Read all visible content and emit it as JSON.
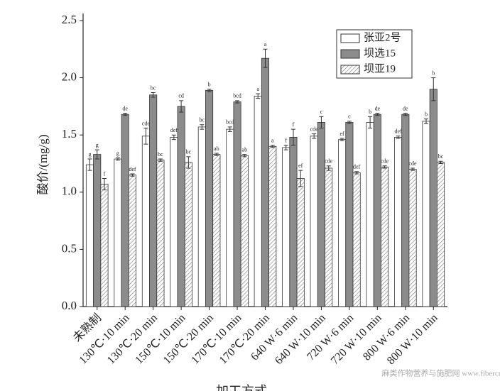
{
  "chart_data": {
    "type": "bar",
    "y_label": "酸价/(mg/g)",
    "x_label": "加工方式",
    "watermark": "麻类作物营养与施肥网 www.fibercrops.com",
    "categories": [
      "未熟制",
      "130℃·10 min",
      "130℃·20 min",
      "150℃·10 min",
      "150℃·20 min",
      "170℃·10 min",
      "170℃·20 min",
      "640 W·6 min",
      "640 W·10 min",
      "720 W·6 min",
      "720 W·10 min",
      "800 W·6 min",
      "800 W·10 min"
    ],
    "series": [
      {
        "name": "张亚2号",
        "color": "#ffffff",
        "hatch": false,
        "values": [
          1.24,
          1.29,
          1.49,
          1.48,
          1.57,
          1.55,
          1.84,
          1.39,
          1.49,
          1.46,
          1.61,
          1.48,
          1.62
        ],
        "errors": [
          0.05,
          0.01,
          0.07,
          0.02,
          0.02,
          0.02,
          0.02,
          0.02,
          0.02,
          0.01,
          0.05,
          0.01,
          0.02
        ],
        "letters": [
          "g",
          "g",
          "cde",
          "def",
          "bc",
          "bcd",
          "a",
          "f",
          "cde",
          "ef",
          "b",
          "def",
          "b"
        ]
      },
      {
        "name": "坝选15",
        "color": "#8c8c8c",
        "hatch": false,
        "values": [
          1.33,
          1.68,
          1.85,
          1.75,
          1.89,
          1.79,
          2.17,
          1.48,
          1.61,
          1.61,
          1.68,
          1.68,
          1.9
        ],
        "errors": [
          0.04,
          0.01,
          0.02,
          0.05,
          0.01,
          0.01,
          0.08,
          0.07,
          0.05,
          0.01,
          0.01,
          0.01,
          0.1
        ],
        "letters": [
          "g",
          "de",
          "bc",
          "cd",
          "b",
          "bcd",
          "a",
          "f",
          "c",
          "c",
          "de",
          "de",
          "b"
        ]
      },
      {
        "name": "坝亚19",
        "color": "#ffffff",
        "hatch": true,
        "values": [
          1.07,
          1.15,
          1.28,
          1.26,
          1.33,
          1.32,
          1.4,
          1.12,
          1.21,
          1.17,
          1.22,
          1.2,
          1.26
        ],
        "errors": [
          0.05,
          0.01,
          0.01,
          0.05,
          0.01,
          0.01,
          0.01,
          0.07,
          0.02,
          0.01,
          0.01,
          0.01,
          0.01
        ],
        "letters": [
          "f",
          "def",
          "bc",
          "bc",
          "ab",
          "ab",
          "a",
          "ef",
          "cde",
          "def",
          "cde",
          "cde",
          "bc"
        ]
      }
    ],
    "ylim": [
      0,
      2.5
    ],
    "yticks": [
      {
        "value": 0,
        "label": "0.0"
      },
      {
        "value": 0.5,
        "label": "0.5"
      },
      {
        "value": 1,
        "label": "1.0"
      },
      {
        "value": 1.5,
        "label": "1.5"
      },
      {
        "value": 2,
        "label": "2.0"
      },
      {
        "value": 2.5,
        "label": "2.5"
      }
    ],
    "legend": "upper right"
  }
}
